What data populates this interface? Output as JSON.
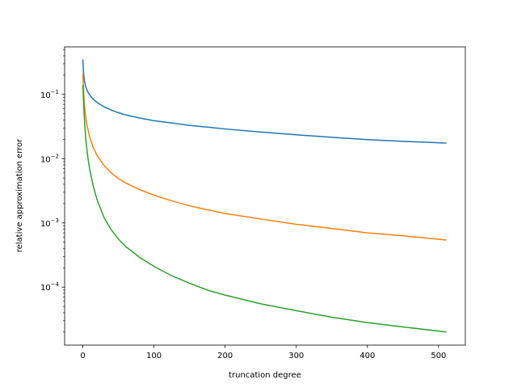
{
  "chart_data": {
    "type": "line",
    "title": "",
    "xlabel": "truncation degree",
    "ylabel": "relative approximation error",
    "xscale": "linear",
    "yscale": "log",
    "xlim": [
      -25.6,
      537.6
    ],
    "ylim": [
      1.25e-05,
      0.55
    ],
    "grid": false,
    "legend": "none",
    "x_ticks": [
      0,
      100,
      200,
      300,
      400,
      500
    ],
    "x_tick_labels": [
      "0",
      "100",
      "200",
      "300",
      "400",
      "500"
    ],
    "y_ticks": [
      {
        "value": 0.1,
        "base": "10",
        "exp": "−1"
      },
      {
        "value": 0.01,
        "base": "10",
        "exp": "−2"
      },
      {
        "value": 0.001,
        "base": "10",
        "exp": "−3"
      },
      {
        "value": 0.0001,
        "base": "10",
        "exp": "−4"
      }
    ],
    "series": [
      {
        "color": "#1f77b4",
        "x": [
          0,
          1,
          2,
          4,
          6,
          8,
          10,
          15,
          20,
          30,
          40,
          50,
          60,
          80,
          100,
          125,
          150,
          175,
          200,
          250,
          300,
          350,
          400,
          450,
          511
        ],
        "y": [
          0.35,
          0.22,
          0.17,
          0.132,
          0.115,
          0.105,
          0.097,
          0.083,
          0.075,
          0.064,
          0.057,
          0.052,
          0.048,
          0.043,
          0.039,
          0.036,
          0.033,
          0.031,
          0.029,
          0.026,
          0.0235,
          0.0215,
          0.0198,
          0.0186,
          0.0175
        ]
      },
      {
        "color": "#ff7f0e",
        "x": [
          0,
          1,
          2,
          4,
          6,
          8,
          10,
          15,
          20,
          30,
          40,
          50,
          60,
          80,
          100,
          125,
          150,
          175,
          200,
          250,
          300,
          350,
          400,
          450,
          511
        ],
        "y": [
          0.21,
          0.12,
          0.075,
          0.045,
          0.033,
          0.026,
          0.021,
          0.0145,
          0.0112,
          0.0078,
          0.006,
          0.0049,
          0.0042,
          0.0033,
          0.0027,
          0.0022,
          0.00185,
          0.0016,
          0.0014,
          0.00115,
          0.00095,
          0.00082,
          0.0007,
          0.00063,
          0.00054
        ]
      },
      {
        "color": "#2ca02c",
        "x": [
          0,
          1,
          2,
          4,
          6,
          8,
          10,
          15,
          20,
          30,
          40,
          50,
          60,
          80,
          100,
          125,
          150,
          175,
          200,
          250,
          300,
          350,
          400,
          450,
          511
        ],
        "y": [
          0.14,
          0.08,
          0.045,
          0.021,
          0.013,
          0.0088,
          0.0065,
          0.0036,
          0.0023,
          0.0012,
          0.00078,
          0.00056,
          0.00043,
          0.00029,
          0.00021,
          0.00015,
          0.000115,
          9e-05,
          7.5e-05,
          5.5e-05,
          4.3e-05,
          3.4e-05,
          2.8e-05,
          2.4e-05,
          2e-05
        ]
      }
    ]
  }
}
